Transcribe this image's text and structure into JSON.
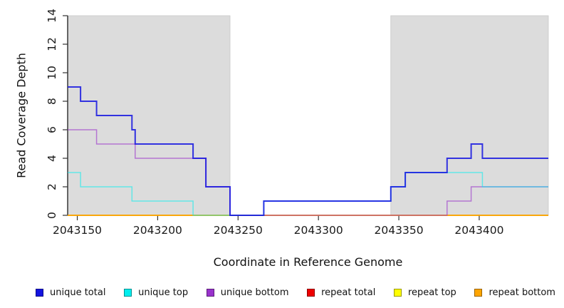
{
  "chart_data": {
    "type": "line",
    "subtype": "step",
    "title": "",
    "xlabel": "Coordinate in Reference Genome",
    "ylabel": "Read Coverage Depth",
    "xlim": [
      2043144,
      2043443
    ],
    "ylim": [
      0,
      14
    ],
    "x_ticks": [
      2043150,
      2043200,
      2043250,
      2043300,
      2043350,
      2043400
    ],
    "y_ticks": [
      0,
      2,
      4,
      6,
      8,
      10,
      12,
      14
    ],
    "grid": false,
    "legend_position": "bottom",
    "background_color": "#ffffff",
    "shaded_region_color": "#dcdcdc",
    "shaded_regions": [
      {
        "x_start": 2043144,
        "x_end": 2043245
      },
      {
        "x_start": 2043345,
        "x_end": 2043443
      }
    ],
    "series": [
      {
        "name": "unique total",
        "color": "#1414e0",
        "points": [
          [
            2043144,
            9
          ],
          [
            2043152,
            8
          ],
          [
            2043162,
            7
          ],
          [
            2043184,
            6
          ],
          [
            2043186,
            5
          ],
          [
            2043222,
            4
          ],
          [
            2043230,
            2
          ],
          [
            2043245,
            0
          ],
          [
            2043266,
            1
          ],
          [
            2043345,
            2
          ],
          [
            2043354,
            3
          ],
          [
            2043380,
            4
          ],
          [
            2043395,
            5
          ],
          [
            2043402,
            4
          ],
          [
            2043443,
            4
          ]
        ]
      },
      {
        "name": "unique top",
        "color": "#00eeee",
        "points": [
          [
            2043144,
            3
          ],
          [
            2043152,
            2
          ],
          [
            2043184,
            1
          ],
          [
            2043222,
            0
          ],
          [
            2043266,
            1
          ],
          [
            2043345,
            2
          ],
          [
            2043354,
            3
          ],
          [
            2043402,
            2
          ],
          [
            2043443,
            2
          ]
        ]
      },
      {
        "name": "unique bottom",
        "color": "#9932cc",
        "points": [
          [
            2043144,
            6
          ],
          [
            2043162,
            5
          ],
          [
            2043186,
            4
          ],
          [
            2043230,
            2
          ],
          [
            2043245,
            0
          ],
          [
            2043380,
            1
          ],
          [
            2043395,
            2
          ],
          [
            2043443,
            2
          ]
        ]
      },
      {
        "name": "repeat total",
        "color": "#ee0000",
        "points": [
          [
            2043144,
            0
          ],
          [
            2043443,
            0
          ]
        ]
      },
      {
        "name": "repeat top",
        "color": "#ffff00",
        "points": [
          [
            2043144,
            0
          ],
          [
            2043443,
            0
          ]
        ]
      },
      {
        "name": "repeat bottom",
        "color": "#ffa500",
        "points": [
          [
            2043144,
            0
          ],
          [
            2043443,
            0
          ]
        ]
      }
    ]
  }
}
